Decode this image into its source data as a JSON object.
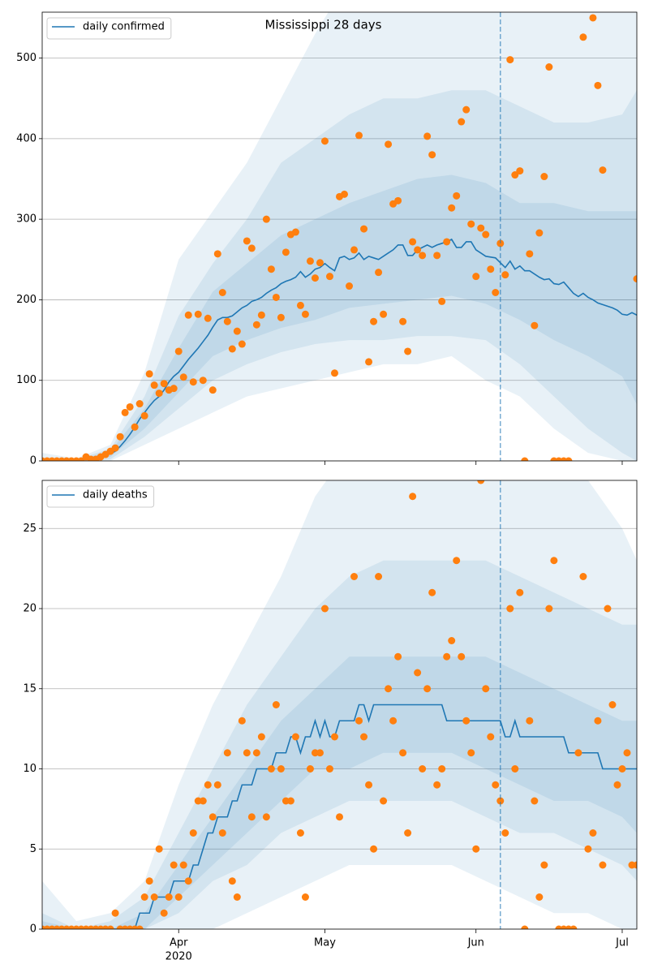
{
  "chart_data": [
    {
      "type": "line",
      "title": "Mississippi 28 days",
      "legend": "upper left",
      "grid": true,
      "xlim": [
        0,
        122
      ],
      "xticks": [
        28,
        58,
        89,
        119
      ],
      "ylim": [
        0,
        557
      ],
      "yticks": [
        0,
        100,
        200,
        300,
        400,
        500
      ],
      "vline": 94,
      "vline_color": "#1f77b4",
      "x": [
        0,
        1,
        2,
        3,
        4,
        5,
        6,
        7,
        8,
        9,
        10,
        11,
        12,
        13,
        14,
        15,
        16,
        17,
        18,
        19,
        20,
        21,
        22,
        23,
        24,
        25,
        26,
        27,
        28,
        29,
        30,
        31,
        32,
        33,
        34,
        35,
        36,
        37,
        38,
        39,
        40,
        41,
        42,
        43,
        44,
        45,
        46,
        47,
        48,
        49,
        50,
        51,
        52,
        53,
        54,
        55,
        56,
        57,
        58,
        59,
        60,
        61,
        62,
        63,
        64,
        65,
        66,
        67,
        68,
        69,
        70,
        71,
        72,
        73,
        74,
        75,
        76,
        77,
        78,
        79,
        80,
        81,
        82,
        83,
        84,
        85,
        86,
        87,
        88,
        89,
        90,
        91,
        92,
        93,
        94,
        95,
        96,
        97,
        98,
        99,
        100,
        101,
        102,
        103,
        104,
        105,
        106,
        107,
        108,
        109,
        110,
        111,
        112,
        113,
        114,
        115,
        116,
        117,
        118,
        119,
        120,
        121,
        122
      ],
      "bands": [
        {
          "color": "#1f77b4",
          "opacity": 0.1,
          "x": [
            0,
            7,
            14,
            21,
            28,
            35,
            42,
            49,
            56,
            63,
            70,
            77,
            84,
            91,
            98,
            105,
            112,
            119,
            122
          ],
          "lower": [
            0,
            0,
            0,
            20,
            40,
            60,
            80,
            90,
            100,
            110,
            120,
            120,
            130,
            100,
            80,
            40,
            10,
            0,
            0
          ],
          "upper": [
            10,
            3,
            20,
            110,
            250,
            310,
            370,
            450,
            530,
            600,
            620,
            640,
            650,
            640,
            600,
            600,
            600,
            600,
            600
          ]
        },
        {
          "color": "#1f77b4",
          "opacity": 0.1,
          "x": [
            0,
            7,
            14,
            21,
            28,
            35,
            42,
            49,
            56,
            63,
            70,
            77,
            84,
            91,
            98,
            105,
            112,
            119,
            122
          ],
          "lower": [
            0,
            0,
            2,
            30,
            65,
            100,
            120,
            135,
            145,
            150,
            150,
            155,
            155,
            150,
            120,
            80,
            40,
            10,
            0
          ],
          "upper": [
            2,
            2,
            15,
            80,
            180,
            245,
            300,
            370,
            400,
            430,
            450,
            450,
            460,
            460,
            440,
            420,
            420,
            430,
            460
          ]
        },
        {
          "color": "#1f77b4",
          "opacity": 0.1,
          "x": [
            0,
            7,
            14,
            21,
            28,
            35,
            42,
            49,
            56,
            63,
            70,
            77,
            84,
            91,
            98,
            105,
            112,
            119,
            122
          ],
          "lower": [
            0,
            0,
            5,
            40,
            85,
            130,
            150,
            165,
            175,
            190,
            195,
            200,
            205,
            195,
            175,
            150,
            130,
            105,
            70
          ],
          "upper": [
            1,
            1,
            12,
            65,
            140,
            210,
            245,
            280,
            300,
            320,
            335,
            350,
            355,
            345,
            320,
            320,
            310,
            310,
            310
          ]
        }
      ],
      "series": [
        {
          "name": "daily confirmed",
          "kind": "line",
          "color": "#1f77b4",
          "values": [
            0,
            0,
            0,
            0,
            0,
            0,
            0,
            0,
            1,
            2,
            3,
            4,
            5,
            7,
            9,
            12,
            18,
            25,
            33,
            42,
            52,
            60,
            68,
            75,
            80,
            88,
            98,
            105,
            110,
            118,
            126,
            133,
            140,
            148,
            156,
            166,
            175,
            178,
            178,
            180,
            185,
            190,
            193,
            198,
            200,
            203,
            208,
            212,
            215,
            220,
            223,
            225,
            228,
            235,
            228,
            232,
            238,
            240,
            245,
            240,
            236,
            252,
            254,
            250,
            252,
            258,
            250,
            254,
            252,
            250,
            254,
            258,
            262,
            268,
            268,
            255,
            255,
            262,
            265,
            268,
            265,
            268,
            270,
            272,
            275,
            265,
            265,
            272,
            272,
            262,
            258,
            254,
            253,
            252,
            246,
            240,
            248,
            238,
            242,
            236,
            236,
            232,
            228,
            225,
            226,
            220,
            219,
            222,
            215,
            208,
            204,
            208,
            203,
            200,
            196,
            194,
            192,
            190,
            187,
            182,
            181,
            184,
            181
          ]
        },
        {
          "kind": "scatter",
          "color": "#ff7f0e",
          "values": [
            0,
            0,
            0,
            0,
            0,
            0,
            0,
            0,
            0,
            5,
            2,
            2,
            5,
            8,
            12,
            16,
            30,
            60,
            67,
            42,
            71,
            56,
            108,
            94,
            84,
            96,
            88,
            90,
            136,
            104,
            181,
            98,
            182,
            100,
            177,
            88,
            257,
            209,
            173,
            139,
            161,
            145,
            273,
            264,
            169,
            181,
            300,
            238,
            203,
            178,
            259,
            281,
            284,
            193,
            182,
            248,
            227,
            246,
            397,
            229,
            109,
            328,
            331,
            217,
            262,
            404,
            288,
            123,
            173,
            234,
            182,
            393,
            319,
            323,
            173,
            136,
            272,
            262,
            255,
            403,
            380,
            255,
            198,
            272,
            314,
            329,
            421,
            436,
            294,
            229,
            289,
            281,
            238,
            209,
            270,
            231,
            498,
            355,
            360,
            0,
            257,
            168,
            283,
            353,
            489,
            0,
            0,
            0,
            0,
            null,
            null,
            526,
            null,
            550,
            466,
            361,
            null,
            null,
            null,
            null,
            null,
            null,
            226
          ]
        }
      ]
    },
    {
      "type": "line",
      "legend": "upper left",
      "grid": true,
      "xlim": [
        0,
        122
      ],
      "xticks": [
        {
          "value": 28,
          "label": "Apr"
        },
        {
          "value": 58,
          "label": "May"
        },
        {
          "value": 89,
          "label": "Jun"
        },
        {
          "value": 119,
          "label": "Jul"
        }
      ],
      "xtick_year": "2020",
      "ylim": [
        0,
        28
      ],
      "yticks": [
        0,
        5,
        10,
        15,
        20,
        25
      ],
      "vline": 94,
      "vline_color": "#1f77b4",
      "x": [
        0,
        1,
        2,
        3,
        4,
        5,
        6,
        7,
        8,
        9,
        10,
        11,
        12,
        13,
        14,
        15,
        16,
        17,
        18,
        19,
        20,
        21,
        22,
        23,
        24,
        25,
        26,
        27,
        28,
        29,
        30,
        31,
        32,
        33,
        34,
        35,
        36,
        37,
        38,
        39,
        40,
        41,
        42,
        43,
        44,
        45,
        46,
        47,
        48,
        49,
        50,
        51,
        52,
        53,
        54,
        55,
        56,
        57,
        58,
        59,
        60,
        61,
        62,
        63,
        64,
        65,
        66,
        67,
        68,
        69,
        70,
        71,
        72,
        73,
        74,
        75,
        76,
        77,
        78,
        79,
        80,
        81,
        82,
        83,
        84,
        85,
        86,
        87,
        88,
        89,
        90,
        91,
        92,
        93,
        94,
        95,
        96,
        97,
        98,
        99,
        100,
        101,
        102,
        103,
        104,
        105,
        106,
        107,
        108,
        109,
        110,
        111,
        112,
        113,
        114,
        115,
        116,
        117,
        118,
        119,
        120,
        121,
        122
      ],
      "bands": [
        {
          "color": "#1f77b4",
          "opacity": 0.1,
          "x": [
            0,
            7,
            14,
            21,
            28,
            35,
            42,
            49,
            56,
            63,
            70,
            77,
            84,
            91,
            98,
            105,
            112,
            119,
            122
          ],
          "lower": [
            0,
            0,
            0,
            0,
            0,
            0,
            1,
            2,
            3,
            4,
            4,
            4,
            4,
            3,
            2,
            1,
            1,
            0,
            0
          ],
          "upper": [
            3,
            0.5,
            1,
            3,
            9,
            14,
            18,
            22,
            27,
            30,
            30,
            30,
            30,
            30,
            30,
            30,
            28,
            25,
            23
          ]
        },
        {
          "color": "#1f77b4",
          "opacity": 0.1,
          "x": [
            0,
            7,
            14,
            21,
            28,
            35,
            42,
            49,
            56,
            63,
            70,
            77,
            84,
            91,
            98,
            105,
            112,
            119,
            122
          ],
          "lower": [
            0,
            0,
            0,
            0,
            1,
            3,
            4,
            6,
            7,
            8,
            8,
            8,
            8,
            7,
            6,
            6,
            5,
            4,
            3
          ],
          "upper": [
            1,
            0,
            0.5,
            2,
            6,
            10,
            14,
            17,
            20,
            22,
            23,
            23,
            23,
            23,
            22,
            21,
            20,
            19,
            19
          ]
        },
        {
          "color": "#1f77b4",
          "opacity": 0.1,
          "x": [
            0,
            7,
            14,
            21,
            28,
            35,
            42,
            49,
            56,
            63,
            70,
            77,
            84,
            91,
            98,
            105,
            112,
            119,
            122
          ],
          "lower": [
            0,
            0,
            0,
            0,
            2,
            4,
            6,
            8,
            10,
            10,
            11,
            11,
            11,
            10,
            9,
            8,
            8,
            7,
            6
          ],
          "upper": [
            0.5,
            0,
            0,
            1,
            4,
            7,
            10,
            13,
            15,
            17,
            17,
            17,
            17,
            17,
            16,
            15,
            14,
            13,
            13
          ]
        }
      ],
      "series": [
        {
          "name": "daily deaths",
          "kind": "line",
          "color": "#1f77b4",
          "values": [
            0,
            0,
            0,
            0,
            0,
            0,
            0,
            0,
            0,
            0,
            0,
            0,
            0,
            0,
            0,
            0,
            0,
            0,
            0,
            0,
            1,
            1,
            1,
            2,
            2,
            2,
            2,
            3,
            3,
            3,
            3,
            4,
            4,
            5,
            6,
            6,
            7,
            7,
            7,
            8,
            8,
            9,
            9,
            9,
            10,
            10,
            10,
            10,
            11,
            11,
            11,
            12,
            12,
            11,
            12,
            12,
            13,
            12,
            13,
            12,
            12,
            13,
            13,
            13,
            13,
            14,
            14,
            13,
            14,
            14,
            14,
            14,
            14,
            14,
            14,
            14,
            14,
            14,
            14,
            14,
            14,
            14,
            14,
            13,
            13,
            13,
            13,
            13,
            13,
            13,
            13,
            13,
            13,
            13,
            13,
            12,
            12,
            13,
            12,
            12,
            12,
            12,
            12,
            12,
            12,
            12,
            12,
            12,
            11,
            11,
            11,
            11,
            11,
            11,
            11,
            10,
            10,
            10,
            10,
            10,
            10,
            10,
            10
          ]
        },
        {
          "kind": "scatter",
          "color": "#ff7f0e",
          "values": [
            0,
            0,
            0,
            0,
            0,
            0,
            0,
            0,
            0,
            0,
            0,
            0,
            0,
            0,
            0,
            1,
            0,
            0,
            0,
            0,
            0,
            2,
            3,
            2,
            5,
            1,
            2,
            4,
            2,
            4,
            3,
            6,
            8,
            8,
            9,
            7,
            9,
            6,
            11,
            3,
            2,
            13,
            11,
            7,
            11,
            12,
            7,
            10,
            14,
            10,
            8,
            8,
            12,
            6,
            2,
            10,
            11,
            11,
            20,
            10,
            12,
            7,
            null,
            null,
            22,
            13,
            12,
            9,
            5,
            22,
            8,
            15,
            13,
            17,
            11,
            6,
            27,
            16,
            10,
            15,
            21,
            9,
            10,
            17,
            18,
            23,
            17,
            13,
            11,
            5,
            28,
            15,
            12,
            9,
            8,
            6,
            20,
            10,
            21,
            0,
            13,
            8,
            2,
            4,
            20,
            23,
            0,
            0,
            0,
            0,
            11,
            22,
            5,
            6,
            13,
            4,
            20,
            14,
            9,
            10,
            11,
            4,
            4
          ]
        }
      ]
    }
  ]
}
